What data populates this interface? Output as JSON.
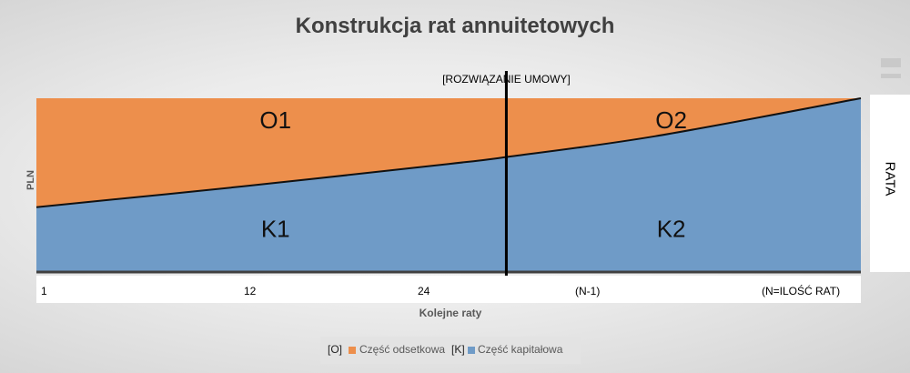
{
  "chart_data": {
    "type": "area",
    "title": "Konstrukcja rat annuitetowych",
    "ylabel": "PLN",
    "xlabel": "Kolejne raty",
    "right_label": "RATA",
    "x_tick_labels": [
      "1",
      "12",
      "24",
      "(N-1)",
      "(N=ILOŚĆ RAT)"
    ],
    "x_range": [
      0,
      1
    ],
    "y_range": [
      0,
      1
    ],
    "boundary_curve": {
      "x": [
        0,
        0.25,
        0.5,
        0.57,
        0.75,
        1.0
      ],
      "y": [
        0.37,
        0.49,
        0.62,
        0.66,
        0.78,
        1.0
      ]
    },
    "series": [
      {
        "name": "Część odsetkowa",
        "legend_prefix": "[O]",
        "color": "#ed8f4c"
      },
      {
        "name": "Część kapitałowa",
        "legend_prefix": "[K]",
        "color": "#6f9bc7"
      }
    ],
    "divider": {
      "x": 0.57,
      "label": "[ROZWIĄZANIE UMOWY]"
    },
    "region_labels": [
      {
        "text": "O1",
        "x": 0.29,
        "y": 0.88
      },
      {
        "text": "O2",
        "x": 0.77,
        "y": 0.88
      },
      {
        "text": "K1",
        "x": 0.29,
        "y": 0.25
      },
      {
        "text": "K2",
        "x": 0.77,
        "y": 0.25
      }
    ],
    "legend_position": "bottom",
    "grid": false
  }
}
